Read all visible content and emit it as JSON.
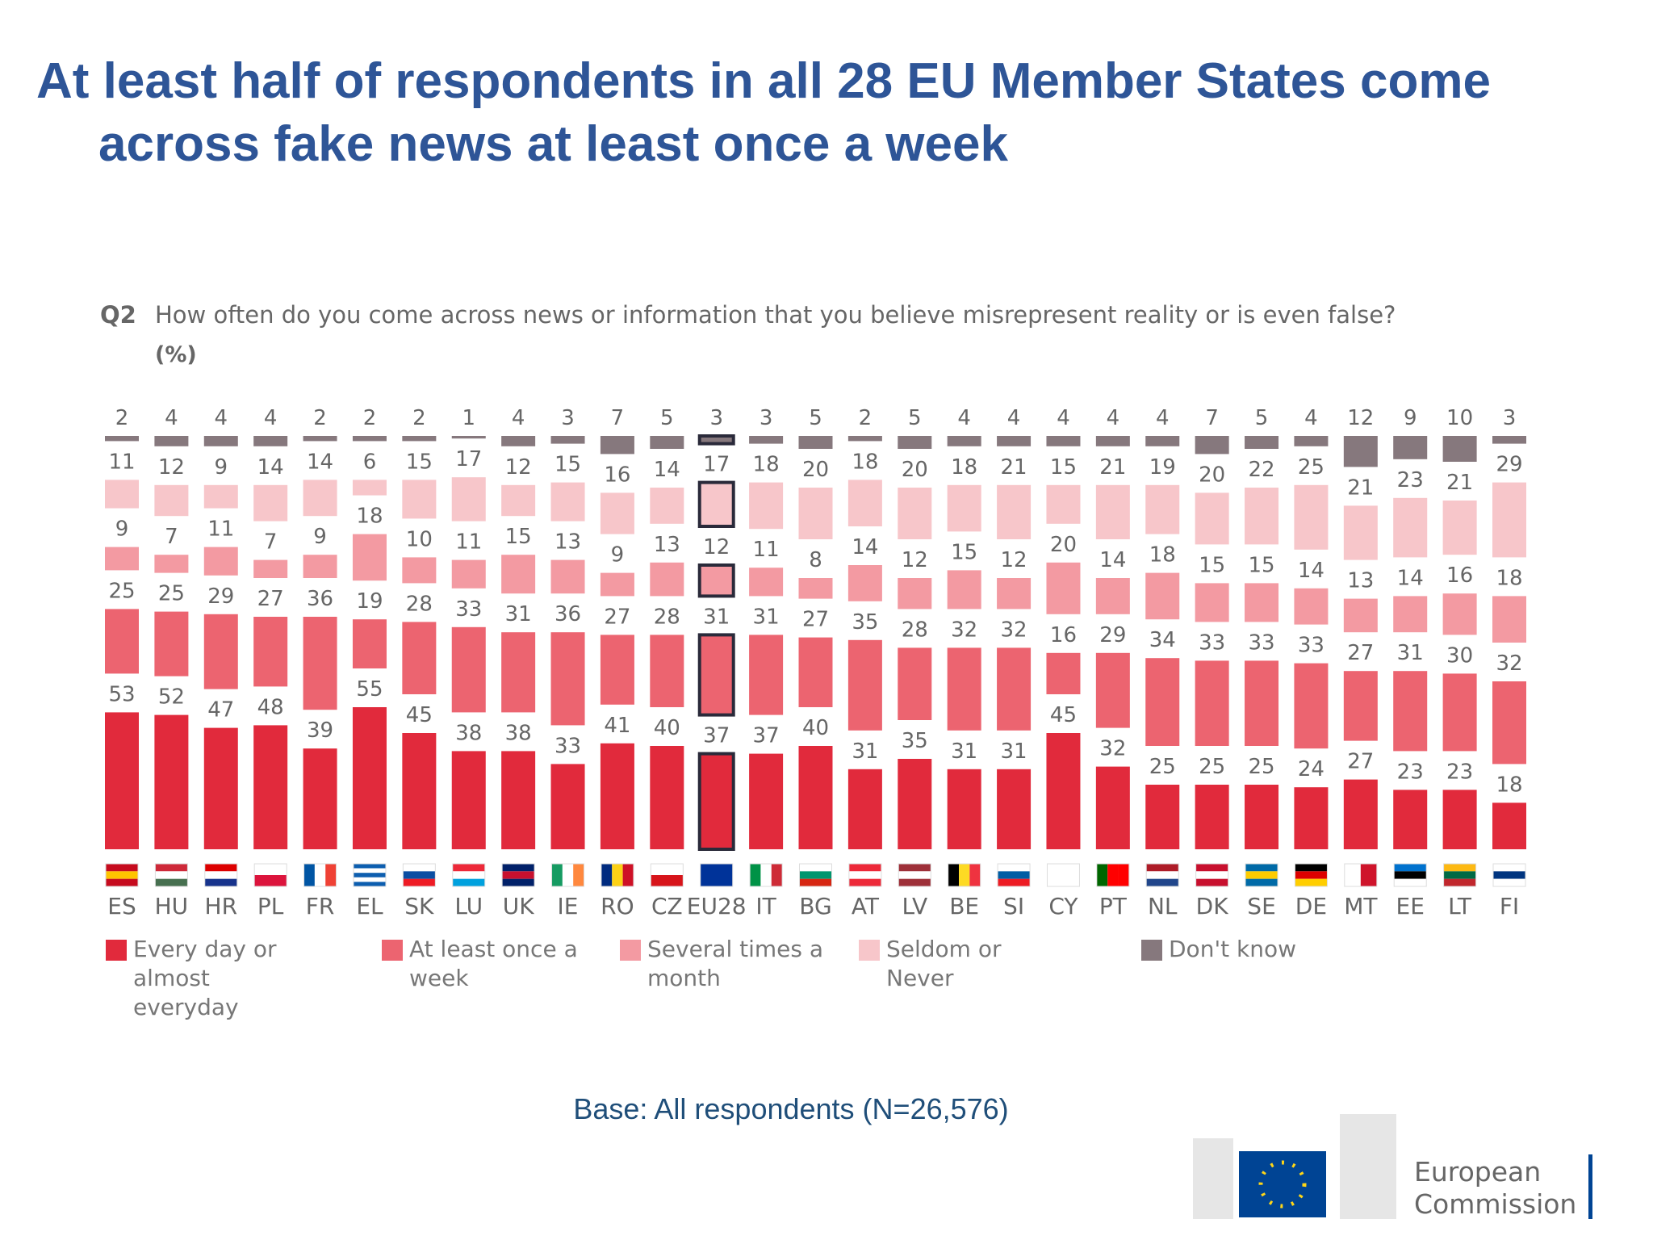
{
  "title": "At least half of respondents in all 28 EU Member States come across fake news at least once a week",
  "chart_data": {
    "type": "stacked-bar",
    "question_id": "Q2",
    "question": "How often do you come across news or information that you believe misrepresent reality or is even false?",
    "unit_label": "(%)",
    "categories": [
      "ES",
      "HU",
      "HR",
      "PL",
      "FR",
      "EL",
      "SK",
      "LU",
      "UK",
      "IE",
      "RO",
      "CZ",
      "EU28",
      "IT",
      "BG",
      "AT",
      "LV",
      "BE",
      "SI",
      "CY",
      "PT",
      "NL",
      "DK",
      "SE",
      "DE",
      "MT",
      "EE",
      "LT",
      "FI"
    ],
    "highlight": "EU28",
    "ylim": [
      0,
      100
    ],
    "series": [
      {
        "name": "Every day or almost everyday",
        "color": "#e12a3c",
        "values": [
          53,
          52,
          47,
          48,
          39,
          55,
          45,
          38,
          38,
          33,
          41,
          40,
          37,
          37,
          40,
          31,
          35,
          31,
          31,
          45,
          32,
          25,
          25,
          25,
          24,
          27,
          23,
          23,
          18
        ]
      },
      {
        "name": "At least once a week",
        "color": "#ec6470",
        "values": [
          25,
          25,
          29,
          27,
          36,
          19,
          28,
          33,
          31,
          36,
          27,
          28,
          31,
          31,
          27,
          35,
          28,
          32,
          32,
          16,
          29,
          34,
          33,
          33,
          33,
          27,
          31,
          30,
          32
        ]
      },
      {
        "name": "Several times a month",
        "color": "#f39aa2",
        "values": [
          9,
          7,
          11,
          7,
          9,
          18,
          10,
          11,
          15,
          13,
          9,
          13,
          12,
          11,
          8,
          14,
          12,
          15,
          12,
          20,
          14,
          18,
          15,
          15,
          14,
          13,
          14,
          16,
          18
        ]
      },
      {
        "name": "Seldom or Never",
        "color": "#f7c6ca",
        "values": [
          11,
          12,
          9,
          14,
          14,
          6,
          15,
          17,
          12,
          15,
          16,
          14,
          17,
          18,
          20,
          18,
          20,
          18,
          21,
          15,
          21,
          19,
          20,
          22,
          25,
          21,
          23,
          21,
          29
        ]
      },
      {
        "name": "Don't know",
        "color": "#86787d",
        "values": [
          2,
          4,
          4,
          4,
          2,
          2,
          2,
          1,
          4,
          3,
          7,
          5,
          3,
          3,
          5,
          2,
          5,
          4,
          4,
          4,
          4,
          4,
          7,
          5,
          4,
          12,
          9,
          10,
          3
        ]
      }
    ]
  },
  "note": "Base: All respondents (N=26,576)",
  "logo_text": "European Commission"
}
